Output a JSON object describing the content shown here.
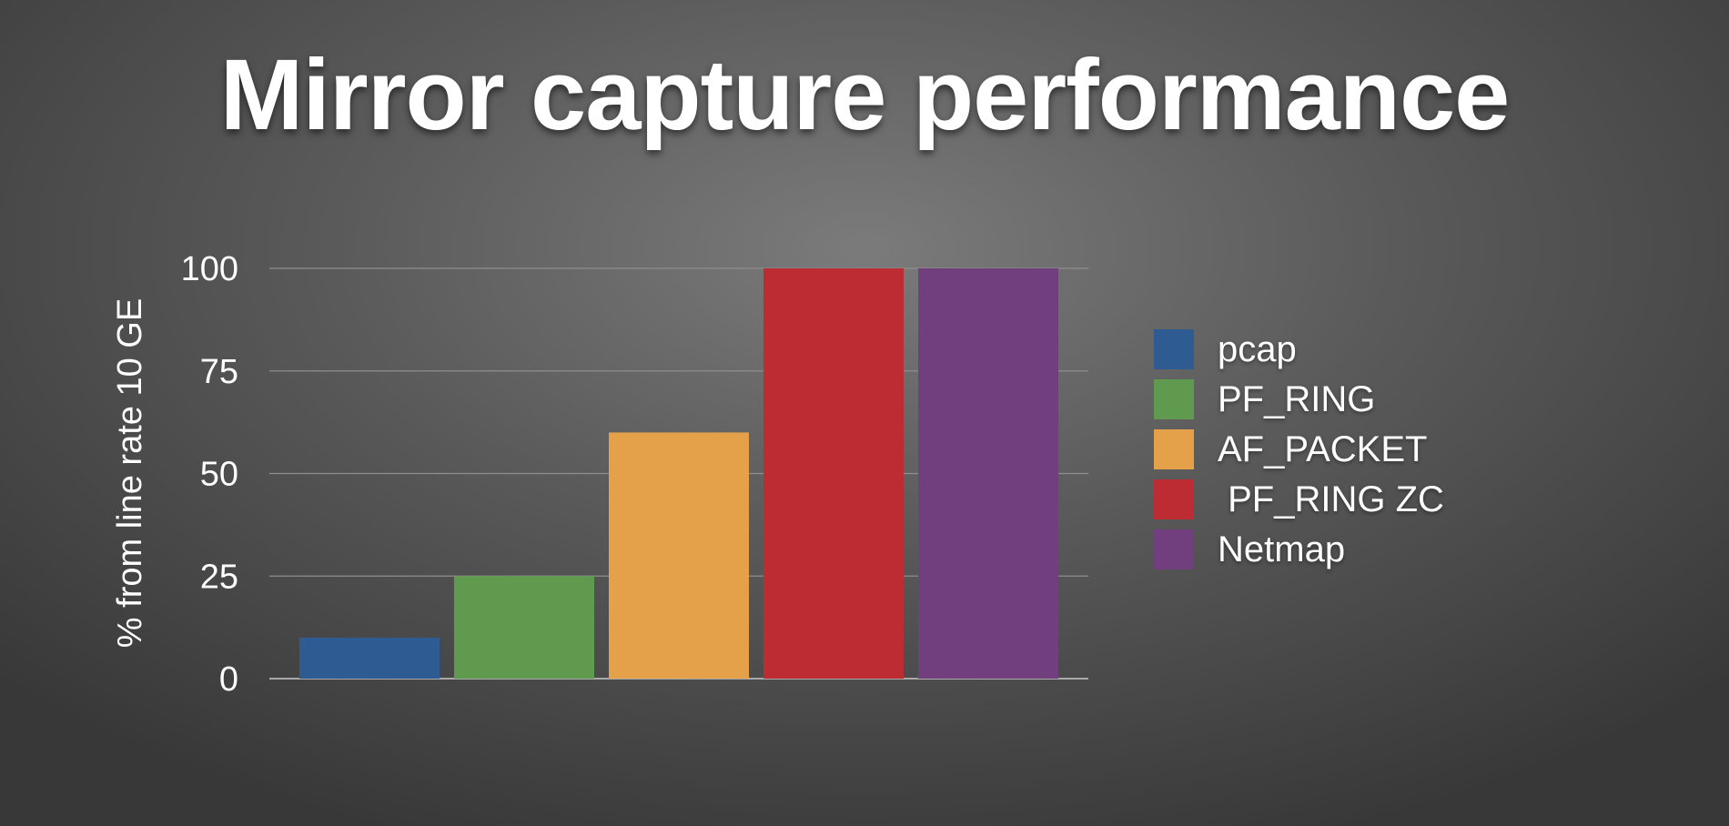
{
  "slide": {
    "title": "Mirror capture performance"
  },
  "chart_data": {
    "type": "bar",
    "title": "",
    "xlabel": "",
    "ylabel": "% from line rate 10 GE",
    "ylim": [
      0,
      100
    ],
    "yticks": [
      0,
      25,
      50,
      75,
      100
    ],
    "grid": true,
    "legend_position": "right",
    "categories": [
      "pcap",
      "PF_RING",
      "AF_PACKET",
      " PF_RING ZC",
      "Netmap"
    ],
    "values": [
      10,
      25,
      60,
      100,
      100
    ],
    "colors": [
      "#2f5b93",
      "#5f9a4e",
      "#e5a04a",
      "#bc2c32",
      "#713e7e"
    ]
  }
}
